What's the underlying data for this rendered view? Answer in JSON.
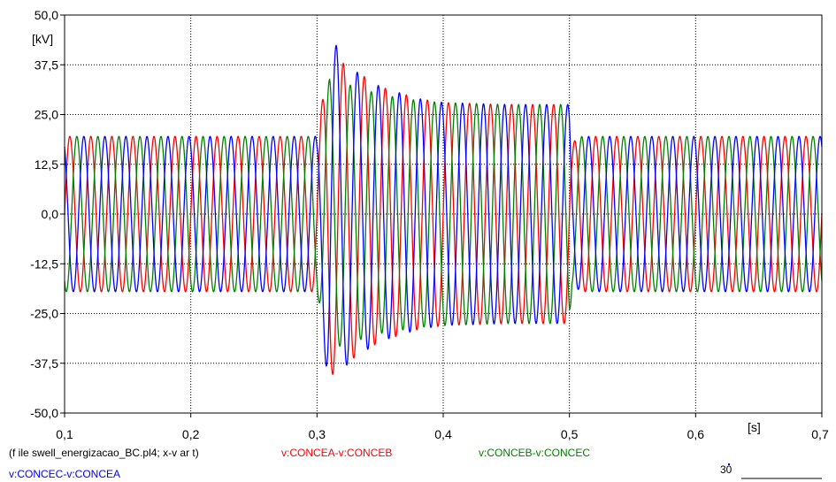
{
  "chart_data": {
    "type": "line",
    "x_unit": "[s]",
    "y_unit": "[kV]",
    "xlim": [
      0.1,
      0.7
    ],
    "ylim": [
      -50,
      50
    ],
    "x_ticks": [
      "0,1",
      "0,2",
      "0,3",
      "0,4",
      "0,5",
      "0,6",
      "0,7"
    ],
    "x_tick_values": [
      0.1,
      0.2,
      0.3,
      0.4,
      0.5,
      0.6,
      0.7
    ],
    "y_ticks": [
      "50,0",
      "37,5",
      "25,0",
      "12,5",
      "0,0",
      "-12,5",
      "-25,0",
      "-37,5",
      "-50,0"
    ],
    "y_tick_values": [
      50,
      37.5,
      25,
      12.5,
      0,
      -12.5,
      -25,
      -37.5,
      -50
    ],
    "grid": true,
    "legend_position": "bottom",
    "series": [
      {
        "name": "v:CONCEA-v:CONCEB",
        "color": "#ff0000",
        "phase_deg": 0,
        "x": [
          0.1,
          0.3,
          0.305,
          0.31,
          0.32,
          0.33,
          0.35,
          0.38,
          0.4,
          0.45,
          0.5,
          0.502,
          0.51,
          0.52,
          0.7
        ],
        "amplitude": [
          19.5,
          19.5,
          30,
          41,
          38,
          36,
          32,
          29,
          28,
          27.5,
          27.5,
          18,
          19.5,
          19.5,
          19.5
        ]
      },
      {
        "name": "v:CONCEB-v:CONCEC",
        "color": "#008000",
        "phase_deg": -120,
        "x": [
          0.1,
          0.3,
          0.305,
          0.31,
          0.32,
          0.33,
          0.35,
          0.38,
          0.4,
          0.45,
          0.5,
          0.502,
          0.51,
          0.52,
          0.7
        ],
        "amplitude": [
          19.5,
          19.5,
          28,
          34,
          33,
          32,
          30,
          28.5,
          28,
          27.5,
          27.5,
          18,
          19.5,
          19.5,
          19.5
        ]
      },
      {
        "name": "v:CONCEC-v:CONCEA",
        "color": "#0000ff",
        "phase_deg": 120,
        "x": [
          0.1,
          0.3,
          0.305,
          0.31,
          0.32,
          0.33,
          0.35,
          0.38,
          0.4,
          0.45,
          0.5,
          0.502,
          0.51,
          0.52,
          0.7
        ],
        "amplitude": [
          19.5,
          19.5,
          32,
          46,
          39,
          36,
          32,
          29,
          28,
          27.5,
          27.5,
          18,
          19.5,
          19.5,
          19.5
        ]
      }
    ],
    "frequency_hz": 60
  },
  "footer": {
    "file_label": "(f ile swell_energizacao_BC.pl4; x-v ar t)",
    "series_1": "v:CONCEA-v:CONCEB",
    "series_2": "v:CONCEB-v:CONCEC",
    "series_3": "v:CONCEC-v:CONCEA"
  },
  "mini_plot_label": "30"
}
